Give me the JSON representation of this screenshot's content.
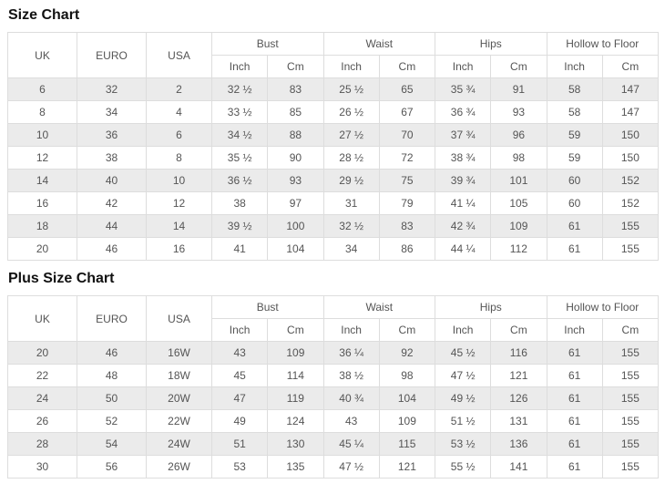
{
  "accent_colors": {
    "row_alt_background": "#ebebeb",
    "border": "#dddddd",
    "text": "#555555",
    "title_text": "#111111"
  },
  "size_chart": {
    "title": "Size Chart",
    "columns": {
      "uk": "UK",
      "euro": "EURO",
      "usa": "USA",
      "groups": [
        "Bust",
        "Waist",
        "Hips",
        "Hollow to Floor"
      ],
      "units": [
        "Inch",
        "Cm",
        "Inch",
        "Cm",
        "Inch",
        "Cm",
        "Inch",
        "Cm"
      ]
    },
    "rows": [
      [
        "6",
        "32",
        "2",
        "32 ½",
        "83",
        "25 ½",
        "65",
        "35 ¾",
        "91",
        "58",
        "147"
      ],
      [
        "8",
        "34",
        "4",
        "33 ½",
        "85",
        "26 ½",
        "67",
        "36 ¾",
        "93",
        "58",
        "147"
      ],
      [
        "10",
        "36",
        "6",
        "34 ½",
        "88",
        "27 ½",
        "70",
        "37 ¾",
        "96",
        "59",
        "150"
      ],
      [
        "12",
        "38",
        "8",
        "35 ½",
        "90",
        "28 ½",
        "72",
        "38 ¾",
        "98",
        "59",
        "150"
      ],
      [
        "14",
        "40",
        "10",
        "36 ½",
        "93",
        "29 ½",
        "75",
        "39 ¾",
        "101",
        "60",
        "152"
      ],
      [
        "16",
        "42",
        "12",
        "38",
        "97",
        "31",
        "79",
        "41 ¼",
        "105",
        "60",
        "152"
      ],
      [
        "18",
        "44",
        "14",
        "39 ½",
        "100",
        "32 ½",
        "83",
        "42 ¾",
        "109",
        "61",
        "155"
      ],
      [
        "20",
        "46",
        "16",
        "41",
        "104",
        "34",
        "86",
        "44 ¼",
        "112",
        "61",
        "155"
      ]
    ]
  },
  "plus_size_chart": {
    "title": "Plus Size Chart",
    "columns": {
      "uk": "UK",
      "euro": "EURO",
      "usa": "USA",
      "groups": [
        "Bust",
        "Waist",
        "Hips",
        "Hollow to Floor"
      ],
      "units": [
        "Inch",
        "Cm",
        "Inch",
        "Cm",
        "Inch",
        "Cm",
        "Inch",
        "Cm"
      ]
    },
    "rows": [
      [
        "20",
        "46",
        "16W",
        "43",
        "109",
        "36 ¼",
        "92",
        "45 ½",
        "116",
        "61",
        "155"
      ],
      [
        "22",
        "48",
        "18W",
        "45",
        "114",
        "38 ½",
        "98",
        "47 ½",
        "121",
        "61",
        "155"
      ],
      [
        "24",
        "50",
        "20W",
        "47",
        "119",
        "40 ¾",
        "104",
        "49 ½",
        "126",
        "61",
        "155"
      ],
      [
        "26",
        "52",
        "22W",
        "49",
        "124",
        "43",
        "109",
        "51 ½",
        "131",
        "61",
        "155"
      ],
      [
        "28",
        "54",
        "24W",
        "51",
        "130",
        "45 ¼",
        "115",
        "53 ½",
        "136",
        "61",
        "155"
      ],
      [
        "30",
        "56",
        "26W",
        "53",
        "135",
        "47 ½",
        "121",
        "55 ½",
        "141",
        "61",
        "155"
      ]
    ]
  }
}
